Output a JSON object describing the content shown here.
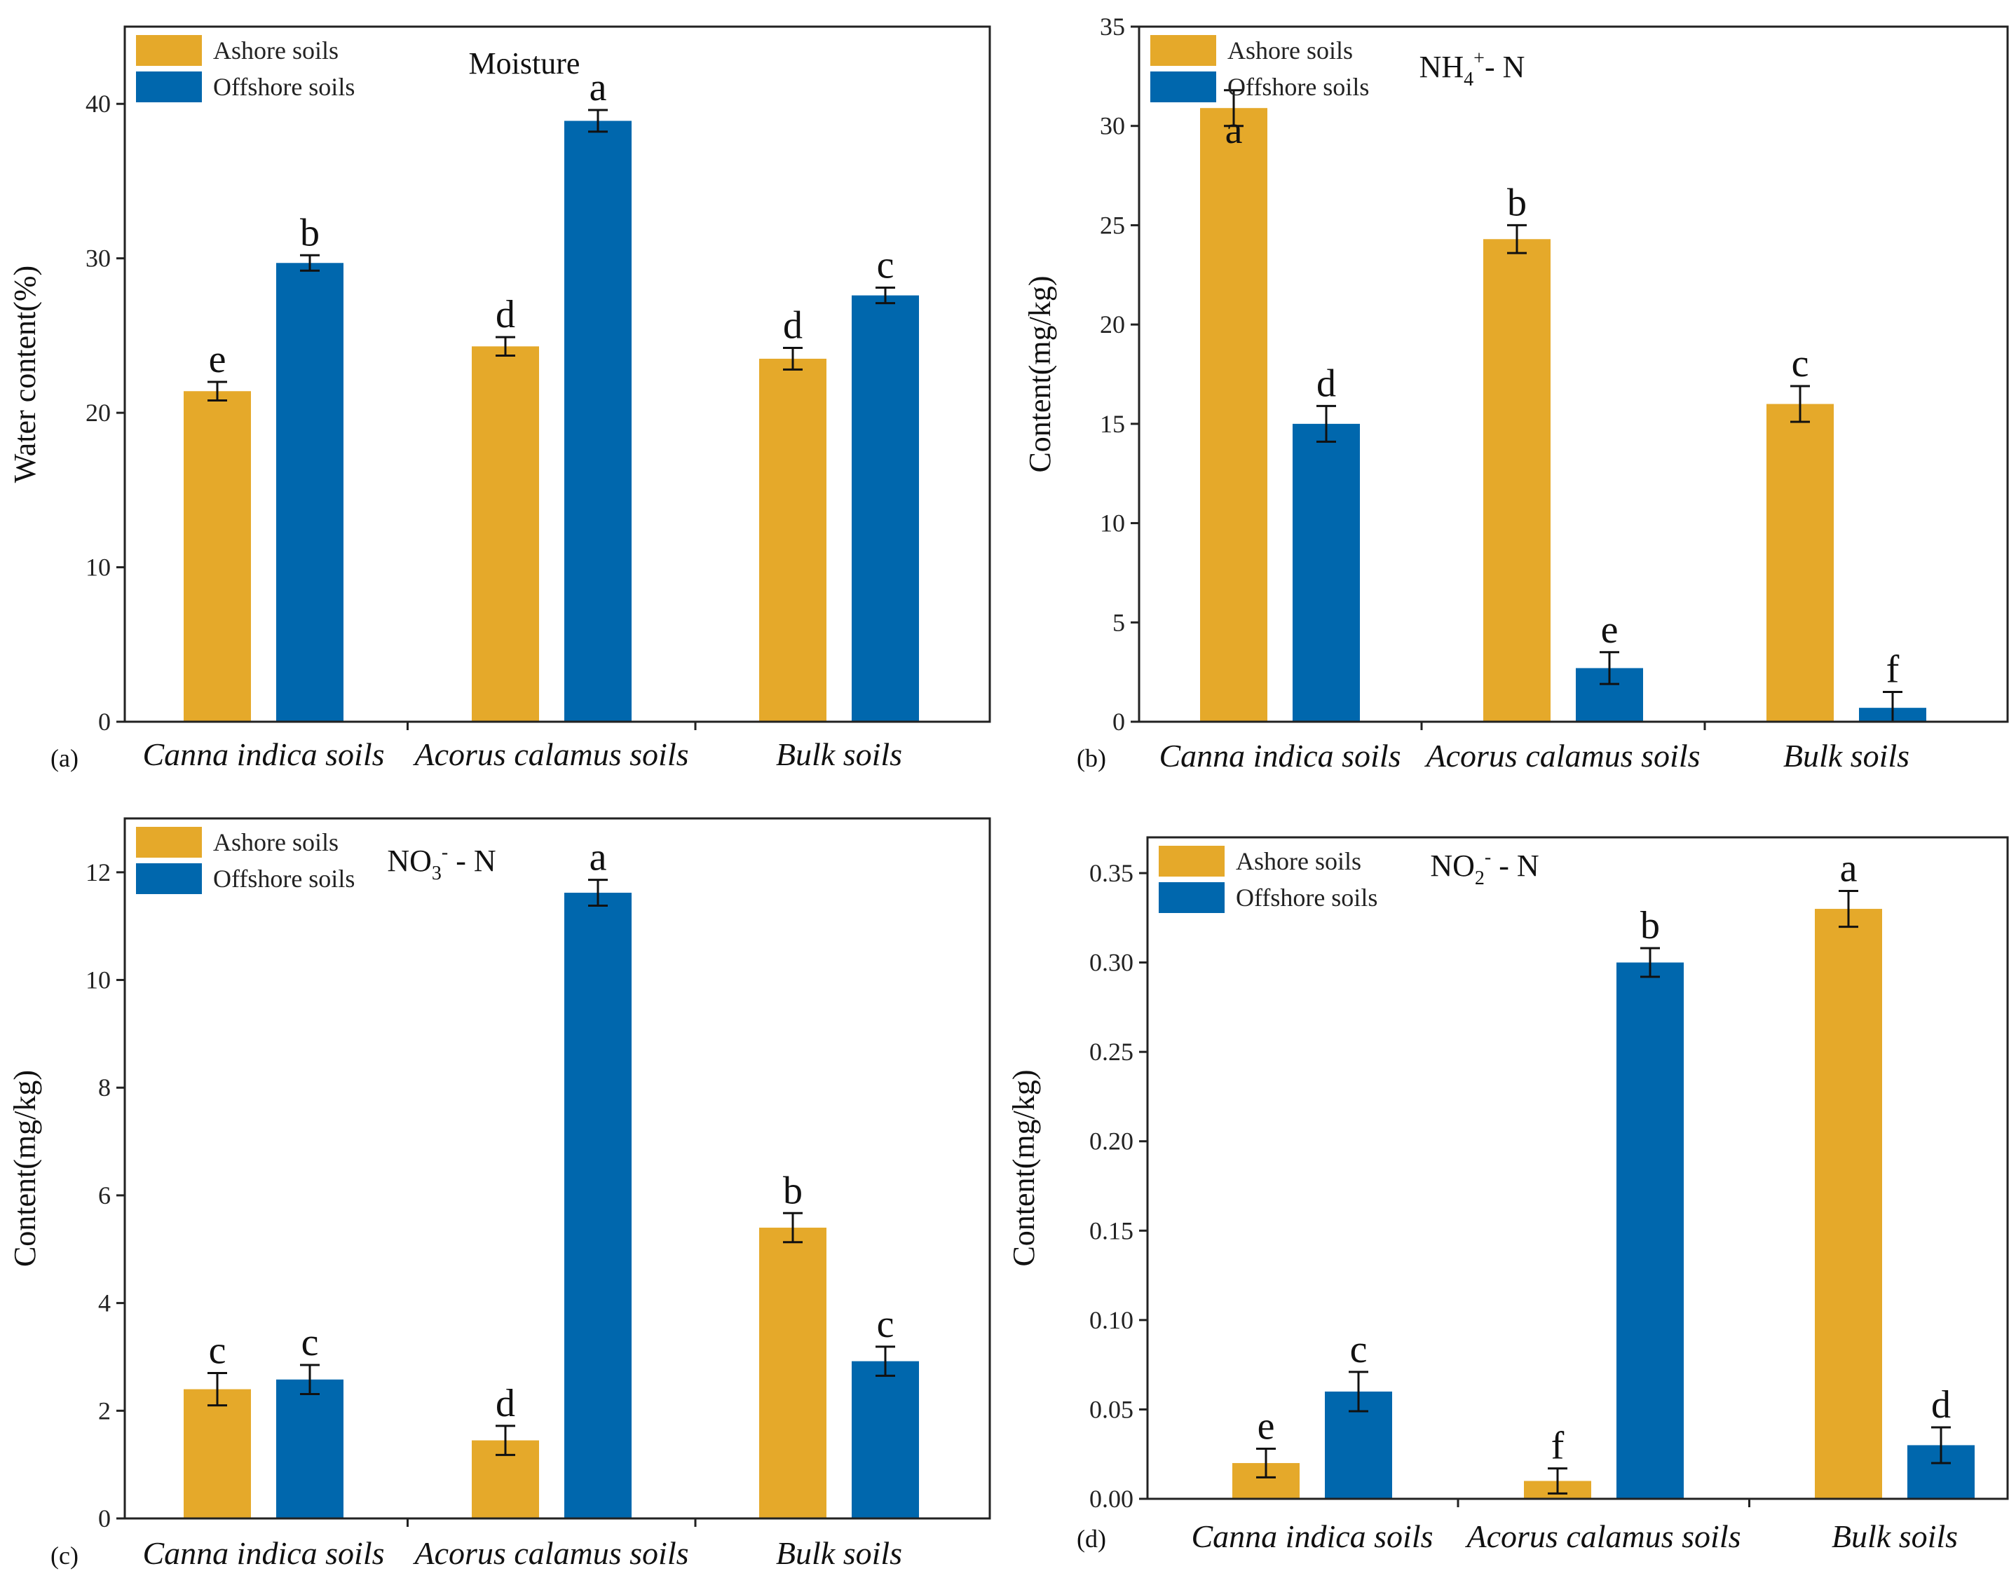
{
  "colors": {
    "ashore": "#E5A92A",
    "offshore": "#0067AD",
    "axis": "#222222"
  },
  "series_names": [
    "Ashore soils",
    "Offshore soils"
  ],
  "chart_data": [
    {
      "type": "bar",
      "panel_label": "(a)",
      "title": "Moisture",
      "title_parts": [
        {
          "t": "Moisture",
          "s": "n"
        }
      ],
      "ylabel": "Water content(%)",
      "ylim": [
        0,
        45
      ],
      "yticks": [
        0,
        10,
        20,
        30,
        40
      ],
      "ytick_labels": [
        "0",
        "10",
        "20",
        "30",
        "40"
      ],
      "categories": [
        "Canna indica soils",
        "Acorus calamus soils",
        "Bulk soils"
      ],
      "series": [
        {
          "name": "Ashore soils",
          "values": [
            21.4,
            24.3,
            23.5
          ],
          "errors": [
            0.6,
            0.6,
            0.7
          ],
          "letters": [
            "e",
            "d",
            "d"
          ]
        },
        {
          "name": "Offshore soils",
          "values": [
            29.7,
            38.9,
            27.6
          ],
          "errors": [
            0.5,
            0.7,
            0.5
          ],
          "letters": [
            "b",
            "a",
            "c"
          ]
        }
      ],
      "legend": "top-left"
    },
    {
      "type": "bar",
      "panel_label": "(b)",
      "title": "NH4+- N",
      "title_parts": [
        {
          "t": "NH",
          "s": "n"
        },
        {
          "t": "4",
          "s": "sub"
        },
        {
          "t": "+",
          "s": "sup"
        },
        {
          "t": "- N",
          "s": "n"
        }
      ],
      "ylabel": "Content(mg/kg)",
      "ylim": [
        0,
        35
      ],
      "yticks": [
        0,
        5,
        10,
        15,
        20,
        25,
        30,
        35
      ],
      "ytick_labels": [
        "0",
        "5",
        "10",
        "15",
        "20",
        "25",
        "30",
        "35"
      ],
      "categories": [
        "Canna indica soils",
        "Acorus calamus soils",
        "Bulk soils"
      ],
      "series": [
        {
          "name": "Ashore soils",
          "values": [
            30.9,
            24.3,
            16.0
          ],
          "errors": [
            0.9,
            0.7,
            0.9
          ],
          "letters": [
            "a",
            "b",
            "c"
          ]
        },
        {
          "name": "Offshore soils",
          "values": [
            15.0,
            2.7,
            0.7
          ],
          "errors": [
            0.9,
            0.8,
            0.8
          ],
          "letters": [
            "d",
            "e",
            "f"
          ]
        }
      ],
      "legend": "top-left"
    },
    {
      "type": "bar",
      "panel_label": "(c)",
      "title": "NO3- - N",
      "title_parts": [
        {
          "t": "NO",
          "s": "n"
        },
        {
          "t": "3",
          "s": "sub"
        },
        {
          "t": "-",
          "s": "sup"
        },
        {
          "t": " - N",
          "s": "n"
        }
      ],
      "ylabel": "Content(mg/kg)",
      "ylim": [
        0,
        13
      ],
      "yticks": [
        0,
        2,
        4,
        6,
        8,
        10,
        12
      ],
      "ytick_labels": [
        "0",
        "2",
        "4",
        "6",
        "8",
        "10",
        "12"
      ],
      "categories": [
        "Canna indica soils",
        "Acorus calamus soils",
        "Bulk soils"
      ],
      "series": [
        {
          "name": "Ashore soils",
          "values": [
            2.4,
            1.45,
            5.4
          ],
          "errors": [
            0.3,
            0.27,
            0.27
          ],
          "letters": [
            "c",
            "d",
            "b"
          ]
        },
        {
          "name": "Offshore soils",
          "values": [
            2.58,
            11.62,
            2.92
          ],
          "errors": [
            0.27,
            0.24,
            0.27
          ],
          "letters": [
            "c",
            "a",
            "c"
          ]
        }
      ],
      "legend": "top-left"
    },
    {
      "type": "bar",
      "panel_label": "(d)",
      "title": "NO2- - N",
      "title_parts": [
        {
          "t": "NO",
          "s": "n"
        },
        {
          "t": "2",
          "s": "sub"
        },
        {
          "t": "-",
          "s": "sup"
        },
        {
          "t": " - N",
          "s": "n"
        }
      ],
      "ylabel": "Content(mg/kg)",
      "ylim": [
        0,
        0.37
      ],
      "yticks": [
        0,
        0.05,
        0.1,
        0.15,
        0.2,
        0.25,
        0.3,
        0.35
      ],
      "ytick_labels": [
        "0.00",
        "0.05",
        "0.10",
        "0.15",
        "0.20",
        "0.25",
        "0.30",
        "0.35"
      ],
      "categories": [
        "Canna indica soils",
        "Acorus calamus soils",
        "Bulk soils"
      ],
      "series": [
        {
          "name": "Ashore soils",
          "values": [
            0.02,
            0.01,
            0.33
          ],
          "errors": [
            0.008,
            0.007,
            0.01
          ],
          "letters": [
            "e",
            "f",
            "a"
          ]
        },
        {
          "name": "Offshore soils",
          "values": [
            0.06,
            0.3,
            0.03
          ],
          "errors": [
            0.011,
            0.008,
            0.01
          ],
          "letters": [
            "c",
            "b",
            "d"
          ]
        }
      ],
      "legend": "top-left"
    }
  ]
}
